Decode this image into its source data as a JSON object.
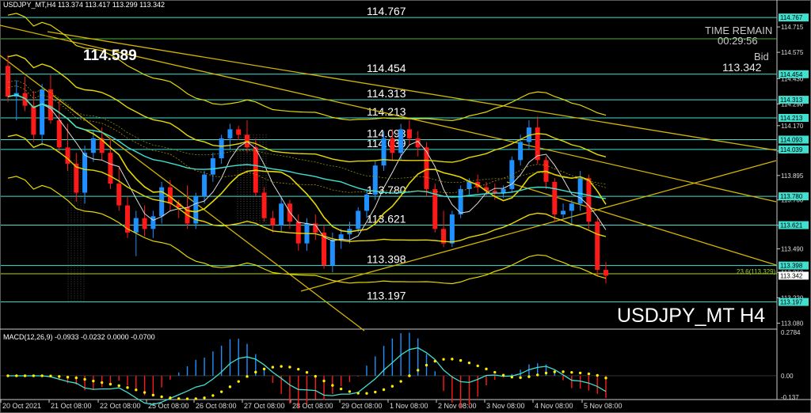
{
  "header": {
    "ohlc_text": "USDJPY_MT,H4  113.374 113.417 113.299 113.342"
  },
  "watermark": {
    "symbol": "USDJPY_MT H4"
  },
  "overlay": {
    "big_level": "114.589",
    "time_remain_label": "TIME REMAIN",
    "countdown": "00:29:56",
    "bid_label": "Bid",
    "bid_value": "113.342"
  },
  "fib_label": "23.6(113.329)",
  "macd_header": "MACD(12,26,9) -0.0933 -0.0232 0.0000 -0.0700",
  "colors": {
    "bull": "#1e90ff",
    "bear": "#ff1a1a",
    "level": "#40e0d0",
    "band": "#e6d800",
    "trend": "#d4b400",
    "macd_signal": "#ffee00"
  },
  "chart_data": {
    "type": "candlestick",
    "symbol": "USDJPY_MT",
    "timeframe": "H4",
    "last_ohlc": {
      "open": 113.374,
      "high": 113.417,
      "low": 113.299,
      "close": 113.342
    },
    "ylim": [
      113.06,
      114.82
    ],
    "y_ticks": [
      "114.715",
      "114.575",
      "114.430",
      "114.290",
      "114.170",
      "114.030",
      "113.895",
      "113.760",
      "113.620",
      "113.490",
      "113.360",
      "113.220",
      "113.080"
    ],
    "x_ticks": [
      "20 Oct 2021",
      "21 Oct 08:00",
      "22 Oct 08:00",
      "25 Oct 08:00",
      "26 Oct 08:00",
      "27 Oct 08:00",
      "28 Oct 08:00",
      "29 Oct 08:00",
      "1 Nov 08:00",
      "2 Nov 08:00",
      "3 Nov 08:00",
      "4 Nov 08:00",
      "5 Nov 08:00"
    ],
    "horizontal_levels": [
      "114.767",
      "114.454",
      "114.313",
      "114.213",
      "114.093",
      "114.039",
      "113.780",
      "113.621",
      "113.398",
      "113.197"
    ],
    "price_tags": [
      "114.767",
      "114.454",
      "114.313",
      "114.213",
      "114.093",
      "114.039",
      "113.780",
      "113.621",
      "113.398",
      "113.342",
      "113.197"
    ],
    "macd": {
      "fast": 12,
      "slow": 26,
      "signal": 9,
      "ylim": [
        -0.137,
        0.2784
      ],
      "ticks": [
        "0.2784",
        "0.00",
        "-0.137"
      ]
    },
    "candles": [
      [
        114.5,
        114.56,
        114.3,
        114.33
      ],
      [
        114.33,
        114.42,
        114.2,
        114.35
      ],
      [
        114.35,
        114.44,
        114.25,
        114.28
      ],
      [
        114.28,
        114.36,
        114.08,
        114.12
      ],
      [
        114.12,
        114.4,
        114.06,
        114.37
      ],
      [
        114.37,
        114.45,
        114.18,
        114.2
      ],
      [
        114.2,
        114.31,
        114.03,
        114.05
      ],
      [
        114.05,
        114.18,
        113.92,
        113.96
      ],
      [
        113.96,
        114.02,
        113.75,
        113.8
      ],
      [
        113.8,
        114.06,
        113.74,
        114.02
      ],
      [
        114.02,
        114.14,
        113.97,
        114.1
      ],
      [
        114.1,
        114.16,
        113.98,
        114.02
      ],
      [
        114.02,
        114.1,
        113.82,
        113.85
      ],
      [
        113.85,
        113.94,
        113.7,
        113.73
      ],
      [
        113.73,
        113.78,
        113.55,
        113.58
      ],
      [
        113.58,
        113.7,
        113.45,
        113.66
      ],
      [
        113.66,
        113.73,
        113.56,
        113.6
      ],
      [
        113.6,
        113.7,
        113.55,
        113.67
      ],
      [
        113.67,
        113.86,
        113.63,
        113.83
      ],
      [
        113.83,
        113.87,
        113.7,
        113.74
      ],
      [
        113.74,
        113.76,
        113.66,
        113.72
      ],
      [
        113.72,
        113.84,
        113.6,
        113.63
      ],
      [
        113.63,
        113.8,
        113.6,
        113.78
      ],
      [
        113.78,
        113.92,
        113.74,
        113.9
      ],
      [
        113.9,
        114.02,
        113.86,
        113.99
      ],
      [
        113.99,
        114.12,
        113.96,
        114.1
      ],
      [
        114.1,
        114.18,
        114.04,
        114.15
      ],
      [
        114.15,
        114.17,
        114.09,
        114.12
      ],
      [
        114.12,
        114.2,
        114.02,
        114.05
      ],
      [
        114.05,
        114.1,
        113.78,
        113.8
      ],
      [
        113.8,
        113.83,
        113.64,
        113.66
      ],
      [
        113.66,
        113.7,
        113.58,
        113.62
      ],
      [
        113.62,
        113.78,
        113.58,
        113.74
      ],
      [
        113.74,
        113.76,
        113.6,
        113.64
      ],
      [
        113.64,
        113.68,
        113.48,
        113.52
      ],
      [
        113.52,
        113.66,
        113.48,
        113.63
      ],
      [
        113.63,
        113.68,
        113.54,
        113.58
      ],
      [
        113.58,
        113.62,
        113.38,
        113.4
      ],
      [
        113.4,
        113.58,
        113.36,
        113.54
      ],
      [
        113.54,
        113.6,
        113.49,
        113.57
      ],
      [
        113.57,
        113.64,
        113.52,
        113.6
      ],
      [
        113.6,
        113.72,
        113.58,
        113.7
      ],
      [
        113.7,
        113.82,
        113.66,
        113.79
      ],
      [
        113.79,
        113.98,
        113.76,
        113.95
      ],
      [
        113.95,
        114.14,
        113.92,
        114.1
      ],
      [
        114.1,
        114.15,
        113.98,
        114.02
      ],
      [
        114.02,
        114.18,
        113.98,
        114.15
      ],
      [
        114.15,
        114.2,
        114.06,
        114.1
      ],
      [
        114.1,
        114.14,
        114.0,
        114.05
      ],
      [
        114.05,
        114.08,
        113.78,
        113.82
      ],
      [
        113.82,
        113.85,
        113.58,
        113.6
      ],
      [
        113.6,
        113.7,
        113.5,
        113.52
      ],
      [
        113.52,
        113.7,
        113.5,
        113.68
      ],
      [
        113.68,
        113.84,
        113.66,
        113.82
      ],
      [
        113.82,
        113.88,
        113.79,
        113.86
      ],
      [
        113.86,
        113.9,
        113.8,
        113.83
      ],
      [
        113.83,
        113.86,
        113.78,
        113.81
      ],
      [
        113.81,
        113.85,
        113.76,
        113.8
      ],
      [
        113.8,
        113.84,
        113.77,
        113.82
      ],
      [
        113.82,
        114.0,
        113.8,
        113.98
      ],
      [
        113.98,
        114.12,
        113.95,
        114.08
      ],
      [
        114.08,
        114.2,
        114.04,
        114.16
      ],
      [
        114.16,
        114.22,
        113.96,
        113.98
      ],
      [
        113.98,
        114.0,
        113.82,
        113.86
      ],
      [
        113.86,
        113.88,
        113.64,
        113.68
      ],
      [
        113.68,
        113.74,
        113.66,
        113.7
      ],
      [
        113.7,
        113.76,
        113.62,
        113.74
      ],
      [
        113.74,
        113.92,
        113.7,
        113.88
      ],
      [
        113.88,
        113.9,
        113.6,
        113.64
      ],
      [
        113.64,
        113.66,
        113.34,
        113.374
      ],
      [
        113.374,
        113.417,
        113.299,
        113.342
      ]
    ]
  }
}
